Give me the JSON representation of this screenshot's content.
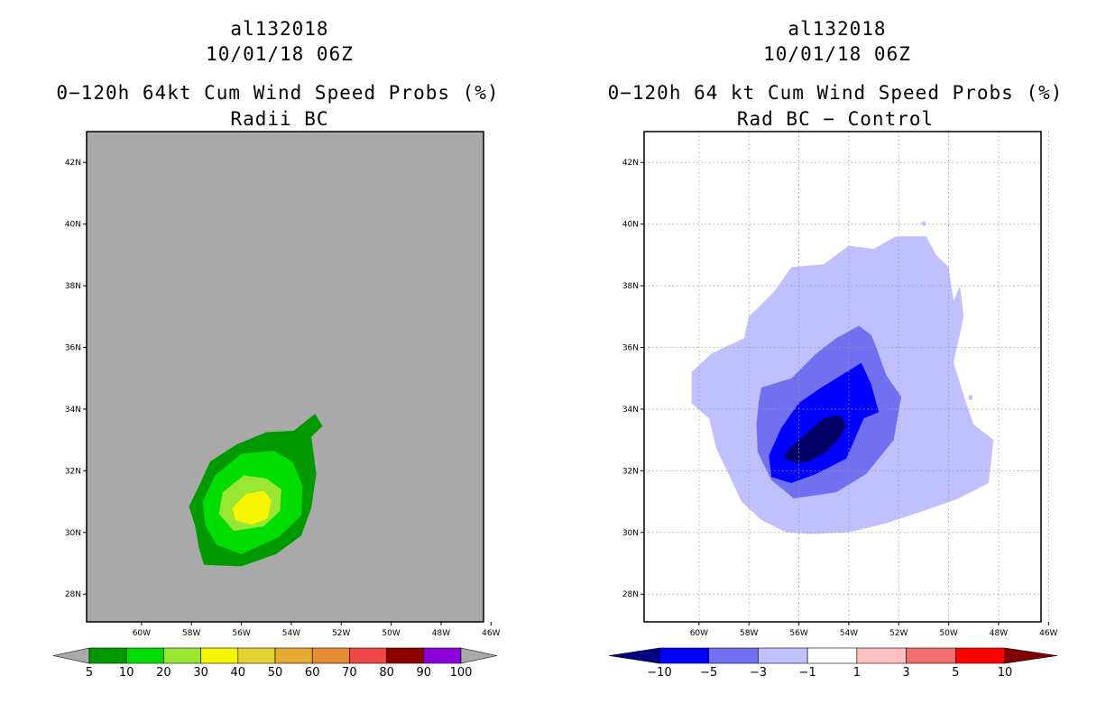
{
  "left_panel": {
    "title_lines": [
      "al132018",
      "10/01/18 06Z",
      "0−120h 64kt Cum Wind Speed Probs (%)",
      "Radii BC"
    ]
  },
  "right_panel": {
    "title_lines": [
      "al132018",
      "10/01/18 06Z",
      "0−120h 64 kt Cum Wind Speed Probs (%)",
      "Rad BC − Control"
    ]
  },
  "chart_data": [
    {
      "type": "contour-map",
      "title": "0−120h 64kt Cum Wind Speed Probs (%)",
      "subtitle": "Radii BC",
      "xlim": [
        -62.2,
        -46.3
      ],
      "ylim": [
        27.1,
        43.0
      ],
      "x_ticks": [
        -60,
        -58,
        -56,
        -54,
        -52,
        -50,
        -48,
        -46
      ],
      "x_tick_labels": [
        "60W",
        "58W",
        "56W",
        "54W",
        "52W",
        "50W",
        "48W",
        "46W"
      ],
      "y_ticks": [
        28,
        30,
        32,
        34,
        36,
        38,
        40,
        42
      ],
      "y_tick_labels": [
        "28N",
        "30N",
        "32N",
        "34N",
        "36N",
        "38N",
        "40N",
        "42N"
      ],
      "grid": false,
      "background_color": "#a9a9a9",
      "colorbar": {
        "labels": [
          "5",
          "10",
          "20",
          "30",
          "40",
          "50",
          "60",
          "70",
          "80",
          "90",
          "100"
        ],
        "colors": [
          "#009900",
          "#00dd00",
          "#99e633",
          "#f5f500",
          "#e6d233",
          "#e6aa33",
          "#e68c33",
          "#f04646",
          "#8c0000",
          "#8c00dc"
        ],
        "arrow_color": "#a9a9a9"
      },
      "contours": [
        {
          "level": 5,
          "color": "#009900",
          "points": [
            [
              -57.5,
              28.95
            ],
            [
              -56,
              28.9
            ],
            [
              -54.6,
              29.3
            ],
            [
              -53.6,
              29.9
            ],
            [
              -53.2,
              30.8
            ],
            [
              -53,
              31.9
            ],
            [
              -53.2,
              33.1
            ],
            [
              -52.75,
              33.45
            ],
            [
              -53.05,
              33.85
            ],
            [
              -53.9,
              33.3
            ],
            [
              -55,
              33.25
            ],
            [
              -56.2,
              32.85
            ],
            [
              -57.25,
              32.3
            ],
            [
              -57.7,
              31.5
            ],
            [
              -58.1,
              30.85
            ],
            [
              -57.85,
              30.2
            ],
            [
              -57.7,
              29.5
            ]
          ]
        },
        {
          "level": 10,
          "color": "#00dd00",
          "points": [
            [
              -57,
              29.6
            ],
            [
              -56,
              29.3
            ],
            [
              -54.5,
              29.85
            ],
            [
              -53.6,
              30.55
            ],
            [
              -53.55,
              31.5
            ],
            [
              -53.95,
              32.3
            ],
            [
              -54.7,
              32.65
            ],
            [
              -56,
              32.55
            ],
            [
              -57.05,
              31.85
            ],
            [
              -57.55,
              31
            ],
            [
              -57.45,
              30.25
            ]
          ]
        },
        {
          "level": 20,
          "color": "#99e633",
          "points": [
            [
              -56.3,
              30.05
            ],
            [
              -55.1,
              30.2
            ],
            [
              -54.45,
              30.7
            ],
            [
              -54.4,
              31.4
            ],
            [
              -55,
              31.75
            ],
            [
              -55.9,
              31.85
            ],
            [
              -56.75,
              31.3
            ],
            [
              -56.9,
              30.6
            ]
          ]
        },
        {
          "level": 30,
          "color": "#f5f500",
          "points": [
            [
              -55.6,
              30.25
            ],
            [
              -54.95,
              30.45
            ],
            [
              -54.8,
              31.05
            ],
            [
              -55.1,
              31.35
            ],
            [
              -55.8,
              31.25
            ],
            [
              -56.35,
              30.8
            ],
            [
              -56.25,
              30.4
            ]
          ]
        }
      ]
    },
    {
      "type": "contour-map",
      "title": "0−120h 64 kt Cum Wind Speed Probs (%)",
      "subtitle": "Rad BC − Control",
      "xlim": [
        -62.2,
        -46.3
      ],
      "ylim": [
        27.1,
        43.0
      ],
      "x_ticks": [
        -60,
        -58,
        -56,
        -54,
        -52,
        -50,
        -48,
        -46
      ],
      "x_tick_labels": [
        "60W",
        "58W",
        "56W",
        "54W",
        "52W",
        "50W",
        "48W",
        "46W"
      ],
      "y_ticks": [
        28,
        30,
        32,
        34,
        36,
        38,
        40,
        42
      ],
      "y_tick_labels": [
        "28N",
        "30N",
        "32N",
        "34N",
        "36N",
        "38N",
        "40N",
        "42N"
      ],
      "grid": true,
      "background_color": "#ffffff",
      "colorbar": {
        "labels": [
          "−10",
          "−5",
          "−3",
          "−1",
          "1",
          "3",
          "5",
          "10"
        ],
        "colors": [
          "#0000ff",
          "#7070f0",
          "#c0c0ff",
          "#ffffff",
          "#ffc0c0",
          "#f07070",
          "#ff0000"
        ],
        "low_arrow_color": "#000080",
        "high_arrow_color": "#800000"
      },
      "contours": [
        {
          "level": -1,
          "color": "#c0c0ff",
          "points": [
            [
              -56.5,
              30
            ],
            [
              -55.5,
              29.95
            ],
            [
              -54,
              30
            ],
            [
              -52.5,
              30.3
            ],
            [
              -51,
              30.7
            ],
            [
              -49.6,
              31.1
            ],
            [
              -48.4,
              31.6
            ],
            [
              -48.2,
              33
            ],
            [
              -49,
              33.5
            ],
            [
              -49.3,
              34.2
            ],
            [
              -49.8,
              35.5
            ],
            [
              -49.4,
              37
            ],
            [
              -49.55,
              38
            ],
            [
              -49.8,
              37.5
            ],
            [
              -50,
              38.6
            ],
            [
              -50.5,
              39
            ],
            [
              -50.9,
              39.6
            ],
            [
              -52.1,
              39.6
            ],
            [
              -53,
              39.2
            ],
            [
              -54,
              39.3
            ],
            [
              -55,
              38.7
            ],
            [
              -56.3,
              38.6
            ],
            [
              -57,
              37.8
            ],
            [
              -58,
              37
            ],
            [
              -58.2,
              36.3
            ],
            [
              -59.5,
              35.8
            ],
            [
              -60.3,
              35.2
            ],
            [
              -60.3,
              34.2
            ],
            [
              -59.6,
              33.7
            ],
            [
              -59.3,
              32.7
            ],
            [
              -58.7,
              31.7
            ],
            [
              -58.3,
              31
            ],
            [
              -57.5,
              30.4
            ]
          ]
        },
        {
          "level": -3,
          "color": "#7070f0",
          "points": [
            [
              -56.2,
              31.1
            ],
            [
              -54.5,
              31.3
            ],
            [
              -53.3,
              31.9
            ],
            [
              -52.2,
              33
            ],
            [
              -51.9,
              34.4
            ],
            [
              -52.5,
              35.1
            ],
            [
              -52.9,
              36
            ],
            [
              -53.1,
              36.4
            ],
            [
              -53.6,
              36.7
            ],
            [
              -54.5,
              36.3
            ],
            [
              -55.3,
              35.8
            ],
            [
              -56.3,
              35
            ],
            [
              -57.5,
              34.7
            ],
            [
              -57.6,
              34.3
            ],
            [
              -57.7,
              33.5
            ],
            [
              -57.65,
              32.6
            ],
            [
              -57.1,
              31.7
            ]
          ]
        },
        {
          "level": -5,
          "color": "#0000ff",
          "points": [
            [
              -56.3,
              31.6
            ],
            [
              -55.3,
              31.9
            ],
            [
              -54.1,
              32.4
            ],
            [
              -53.4,
              33.7
            ],
            [
              -52.8,
              33.9
            ],
            [
              -53.1,
              34.8
            ],
            [
              -53.5,
              35.5
            ],
            [
              -54.1,
              35.2
            ],
            [
              -55.1,
              34.7
            ],
            [
              -56,
              34.2
            ],
            [
              -56.7,
              33.4
            ],
            [
              -57.2,
              32.5
            ],
            [
              -57.1,
              31.8
            ]
          ]
        },
        {
          "level": -10,
          "color": "#000066",
          "points": [
            [
              -56.1,
              32.25
            ],
            [
              -55.6,
              32.3
            ],
            [
              -54.9,
              32.6
            ],
            [
              -54.35,
              33.1
            ],
            [
              -54.1,
              33.5
            ],
            [
              -54.35,
              33.8
            ],
            [
              -55,
              33.7
            ],
            [
              -55.7,
              33.2
            ],
            [
              -56.4,
              32.7
            ],
            [
              -56.6,
              32.4
            ]
          ]
        },
        {
          "level": -1,
          "color": "#c0c0ff",
          "points": [
            [
              -49.2,
              34.45
            ],
            [
              -49.05,
              34.45
            ],
            [
              -49.05,
              34.3
            ],
            [
              -49.2,
              34.3
            ]
          ]
        },
        {
          "level": -1,
          "color": "#c0c0ff",
          "points": [
            [
              -51.1,
              40.05
            ],
            [
              -50.95,
              40.1
            ],
            [
              -50.9,
              39.95
            ],
            [
              -51.05,
              39.95
            ]
          ]
        }
      ]
    }
  ]
}
